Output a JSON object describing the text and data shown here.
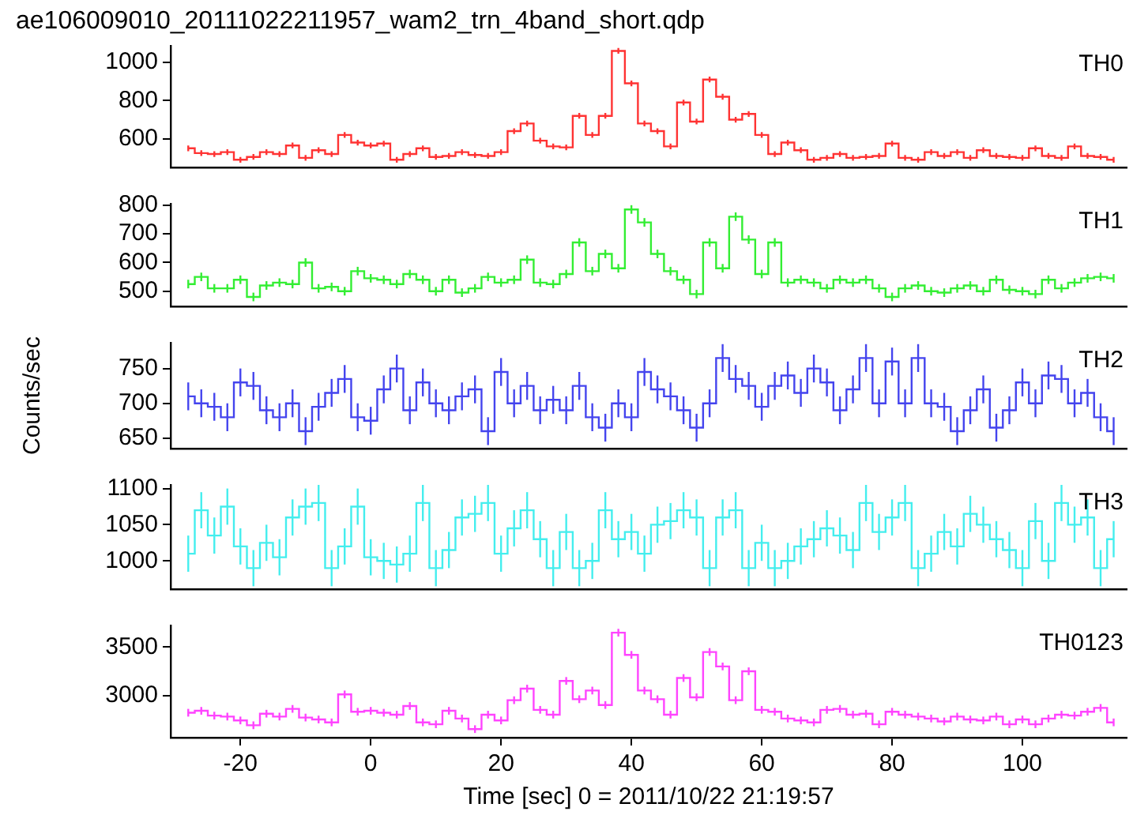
{
  "chart_data": [
    {
      "type": "step",
      "title": "ae106009010_20111022211957_wam2_trn_4band_short.qdp",
      "x": [
        -28,
        -26,
        -24,
        -22,
        -20,
        -18,
        -16,
        -14,
        -12,
        -10,
        -8,
        -6,
        -4,
        -2,
        0,
        2,
        4,
        6,
        8,
        10,
        12,
        14,
        16,
        18,
        20,
        22,
        24,
        26,
        28,
        30,
        32,
        34,
        36,
        38,
        40,
        42,
        44,
        46,
        48,
        50,
        52,
        54,
        56,
        58,
        60,
        62,
        64,
        66,
        68,
        70,
        72,
        74,
        76,
        78,
        80,
        82,
        84,
        86,
        88,
        90,
        92,
        94,
        96,
        98,
        100,
        102,
        104,
        106,
        108,
        110,
        112,
        114
      ],
      "xlim": [
        -30.7,
        116
      ],
      "ylim": [
        450,
        1085
      ],
      "yticks": [
        600,
        800,
        1000
      ],
      "tick_labels": "y",
      "grid": false,
      "legend": false,
      "series": [
        {
          "name": "TH0",
          "color": "#ff3333",
          "values": [
            550,
            525,
            520,
            530,
            490,
            505,
            530,
            520,
            565,
            500,
            540,
            520,
            620,
            580,
            565,
            575,
            490,
            520,
            550,
            505,
            510,
            530,
            515,
            510,
            530,
            640,
            680,
            590,
            560,
            555,
            720,
            620,
            720,
            1060,
            890,
            680,
            640,
            560,
            790,
            690,
            910,
            820,
            700,
            730,
            620,
            520,
            580,
            540,
            490,
            500,
            520,
            500,
            505,
            510,
            575,
            500,
            490,
            530,
            510,
            530,
            500,
            540,
            510,
            505,
            500,
            550,
            510,
            500,
            560,
            510,
            505,
            490
          ],
          "errors": [
            15,
            15,
            15,
            15,
            15,
            15,
            15,
            15,
            15,
            15,
            15,
            15,
            15,
            15,
            15,
            15,
            15,
            15,
            15,
            15,
            15,
            15,
            15,
            15,
            15,
            15,
            15,
            15,
            15,
            15,
            15,
            15,
            15,
            15,
            15,
            15,
            15,
            15,
            15,
            15,
            15,
            15,
            15,
            15,
            15,
            15,
            15,
            15,
            15,
            15,
            15,
            15,
            15,
            15,
            15,
            15,
            15,
            15,
            15,
            15,
            15,
            15,
            15,
            15,
            15,
            15,
            15,
            15,
            15,
            15,
            15,
            15
          ]
        }
      ]
    },
    {
      "type": "step",
      "x": [
        -28,
        -26,
        -24,
        -22,
        -20,
        -18,
        -16,
        -14,
        -12,
        -10,
        -8,
        -6,
        -4,
        -2,
        0,
        2,
        4,
        6,
        8,
        10,
        12,
        14,
        16,
        18,
        20,
        22,
        24,
        26,
        28,
        30,
        32,
        34,
        36,
        38,
        40,
        42,
        44,
        46,
        48,
        50,
        52,
        54,
        56,
        58,
        60,
        62,
        64,
        66,
        68,
        70,
        72,
        74,
        76,
        78,
        80,
        82,
        84,
        86,
        88,
        90,
        92,
        94,
        96,
        98,
        100,
        102,
        104,
        106,
        108,
        110,
        112,
        114
      ],
      "xlim": [
        -30.7,
        116
      ],
      "ylim": [
        447,
        805
      ],
      "yticks": [
        500,
        600,
        700,
        800
      ],
      "tick_labels": "y",
      "grid": false,
      "legend": false,
      "series": [
        {
          "name": "TH1",
          "color": "#33ee33",
          "values": [
            525,
            550,
            510,
            510,
            540,
            480,
            520,
            530,
            525,
            600,
            510,
            515,
            500,
            570,
            545,
            540,
            525,
            560,
            540,
            500,
            540,
            495,
            510,
            550,
            530,
            540,
            610,
            530,
            525,
            560,
            670,
            570,
            630,
            580,
            785,
            740,
            630,
            570,
            540,
            490,
            670,
            580,
            760,
            680,
            560,
            670,
            530,
            540,
            530,
            510,
            540,
            530,
            540,
            510,
            480,
            510,
            520,
            500,
            495,
            510,
            520,
            500,
            540,
            505,
            500,
            490,
            540,
            510,
            530,
            545,
            550,
            545
          ],
          "errors": [
            15,
            15,
            15,
            15,
            15,
            15,
            15,
            15,
            15,
            15,
            15,
            15,
            15,
            15,
            15,
            15,
            15,
            15,
            15,
            15,
            15,
            15,
            15,
            15,
            15,
            15,
            15,
            15,
            15,
            15,
            15,
            15,
            15,
            15,
            15,
            15,
            15,
            15,
            15,
            15,
            15,
            15,
            15,
            15,
            15,
            15,
            15,
            15,
            15,
            15,
            15,
            15,
            15,
            15,
            15,
            15,
            15,
            15,
            15,
            15,
            15,
            15,
            15,
            15,
            15,
            15,
            15,
            15,
            15,
            15,
            15,
            15
          ]
        }
      ]
    },
    {
      "type": "step",
      "ylabel": "Counts/sec",
      "x": [
        -28,
        -26,
        -24,
        -22,
        -20,
        -18,
        -16,
        -14,
        -12,
        -10,
        -8,
        -6,
        -4,
        -2,
        0,
        2,
        4,
        6,
        8,
        10,
        12,
        14,
        16,
        18,
        20,
        22,
        24,
        26,
        28,
        30,
        32,
        34,
        36,
        38,
        40,
        42,
        44,
        46,
        48,
        50,
        52,
        54,
        56,
        58,
        60,
        62,
        64,
        66,
        68,
        70,
        72,
        74,
        76,
        78,
        80,
        82,
        84,
        86,
        88,
        90,
        92,
        94,
        96,
        98,
        100,
        102,
        104,
        106,
        108,
        110,
        112,
        114
      ],
      "xlim": [
        -30.7,
        116
      ],
      "ylim": [
        635,
        787
      ],
      "yticks": [
        650,
        700,
        750
      ],
      "tick_labels": "y",
      "grid": false,
      "legend": false,
      "series": [
        {
          "name": "TH2",
          "color": "#4444ee",
          "values": [
            710,
            700,
            695,
            680,
            730,
            725,
            690,
            680,
            700,
            660,
            695,
            715,
            735,
            680,
            675,
            720,
            750,
            690,
            730,
            700,
            690,
            710,
            720,
            660,
            745,
            700,
            725,
            690,
            705,
            690,
            725,
            680,
            665,
            700,
            680,
            745,
            720,
            710,
            690,
            665,
            700,
            765,
            735,
            725,
            695,
            725,
            740,
            715,
            750,
            730,
            690,
            720,
            765,
            700,
            760,
            700,
            765,
            700,
            695,
            660,
            690,
            720,
            665,
            690,
            730,
            700,
            740,
            735,
            700,
            715,
            680,
            660
          ],
          "errors": [
            20,
            20,
            20,
            20,
            20,
            20,
            20,
            20,
            20,
            20,
            20,
            20,
            20,
            20,
            20,
            20,
            20,
            20,
            20,
            20,
            20,
            20,
            20,
            20,
            20,
            20,
            20,
            20,
            20,
            20,
            20,
            20,
            20,
            20,
            20,
            20,
            20,
            20,
            20,
            20,
            20,
            20,
            20,
            20,
            20,
            20,
            20,
            20,
            20,
            20,
            20,
            20,
            20,
            20,
            20,
            20,
            20,
            20,
            20,
            20,
            20,
            20,
            20,
            20,
            20,
            20,
            20,
            20,
            20,
            20,
            20,
            20
          ]
        }
      ]
    },
    {
      "type": "step",
      "x": [
        -28,
        -26,
        -24,
        -22,
        -20,
        -18,
        -16,
        -14,
        -12,
        -10,
        -8,
        -6,
        -4,
        -2,
        0,
        2,
        4,
        6,
        8,
        10,
        12,
        14,
        16,
        18,
        20,
        22,
        24,
        26,
        28,
        30,
        32,
        34,
        36,
        38,
        40,
        42,
        44,
        46,
        48,
        50,
        52,
        54,
        56,
        58,
        60,
        62,
        64,
        66,
        68,
        70,
        72,
        74,
        76,
        78,
        80,
        82,
        84,
        86,
        88,
        90,
        92,
        94,
        96,
        98,
        100,
        102,
        104,
        106,
        108,
        110,
        112,
        114
      ],
      "xlim": [
        -30.7,
        116
      ],
      "ylim": [
        961,
        1105
      ],
      "yticks": [
        1000,
        1050,
        1100
      ],
      "tick_labels": "y",
      "grid": false,
      "legend": false,
      "series": [
        {
          "name": "TH3",
          "color": "#44eeee",
          "values": [
            1010,
            1070,
            1035,
            1075,
            1020,
            990,
            1025,
            1005,
            1060,
            1075,
            1080,
            990,
            1020,
            1075,
            1005,
            1000,
            995,
            1010,
            1080,
            990,
            1015,
            1060,
            1065,
            1080,
            1010,
            1045,
            1070,
            1030,
            990,
            1040,
            990,
            1000,
            1070,
            1030,
            1040,
            1010,
            1050,
            1055,
            1070,
            1060,
            990,
            1060,
            1070,
            990,
            1025,
            990,
            1000,
            1020,
            1030,
            1045,
            1035,
            1015,
            1080,
            1040,
            1060,
            1080,
            990,
            1010,
            1040,
            1020,
            1065,
            1050,
            1030,
            1015,
            990,
            1055,
            1000,
            1080,
            1050,
            1060,
            990,
            1030
          ],
          "errors": [
            25,
            25,
            25,
            25,
            25,
            25,
            25,
            25,
            25,
            25,
            25,
            25,
            25,
            25,
            25,
            25,
            25,
            25,
            25,
            25,
            25,
            25,
            25,
            25,
            25,
            25,
            25,
            25,
            25,
            25,
            25,
            25,
            25,
            25,
            25,
            25,
            25,
            25,
            25,
            25,
            25,
            25,
            25,
            25,
            25,
            25,
            25,
            25,
            25,
            25,
            25,
            25,
            25,
            25,
            25,
            25,
            25,
            25,
            25,
            25,
            25,
            25,
            25,
            25,
            25,
            25,
            25,
            25,
            25,
            25,
            25,
            25
          ]
        }
      ]
    },
    {
      "type": "step",
      "xlabel": "Time [sec] 0 = 2011/10/22 21:19:57",
      "x": [
        -28,
        -26,
        -24,
        -22,
        -20,
        -18,
        -16,
        -14,
        -12,
        -10,
        -8,
        -6,
        -4,
        -2,
        0,
        2,
        4,
        6,
        8,
        10,
        12,
        14,
        16,
        18,
        20,
        22,
        24,
        26,
        28,
        30,
        32,
        34,
        36,
        38,
        40,
        42,
        44,
        46,
        48,
        50,
        52,
        54,
        56,
        58,
        60,
        62,
        64,
        66,
        68,
        70,
        72,
        74,
        76,
        78,
        80,
        82,
        84,
        86,
        88,
        90,
        92,
        94,
        96,
        98,
        100,
        102,
        104,
        106,
        108,
        110,
        112,
        114
      ],
      "xlim": [
        -30.7,
        116
      ],
      "xticks": [
        -20,
        0,
        20,
        40,
        60,
        80,
        100
      ],
      "ylim": [
        2562,
        3725
      ],
      "yticks": [
        3000,
        3500
      ],
      "grid": false,
      "legend": false,
      "series": [
        {
          "name": "TH0123",
          "color": "#ff44ff",
          "values": [
            2820,
            2840,
            2790,
            2780,
            2740,
            2690,
            2810,
            2780,
            2860,
            2770,
            2750,
            2720,
            3010,
            2830,
            2840,
            2820,
            2800,
            2890,
            2720,
            2700,
            2840,
            2760,
            2650,
            2800,
            2740,
            2950,
            3070,
            2850,
            2800,
            3150,
            2960,
            3050,
            2900,
            3650,
            3420,
            3050,
            2960,
            2800,
            3180,
            2980,
            3450,
            3300,
            2950,
            3250,
            2850,
            2830,
            2760,
            2740,
            2720,
            2850,
            2860,
            2800,
            2810,
            2700,
            2830,
            2800,
            2780,
            2760,
            2730,
            2780,
            2750,
            2740,
            2780,
            2700,
            2750,
            2700,
            2760,
            2800,
            2790,
            2830,
            2870,
            2720
          ],
          "errors": [
            40,
            40,
            40,
            40,
            40,
            40,
            40,
            40,
            40,
            40,
            40,
            40,
            40,
            40,
            40,
            40,
            40,
            40,
            40,
            40,
            40,
            40,
            40,
            40,
            40,
            40,
            40,
            40,
            40,
            40,
            40,
            40,
            40,
            40,
            40,
            40,
            40,
            40,
            40,
            40,
            40,
            40,
            40,
            40,
            40,
            40,
            40,
            40,
            40,
            40,
            40,
            40,
            40,
            40,
            40,
            40,
            40,
            40,
            40,
            40,
            40,
            40,
            40,
            40,
            40,
            40,
            40,
            40,
            40,
            40,
            40,
            40
          ]
        }
      ]
    }
  ]
}
